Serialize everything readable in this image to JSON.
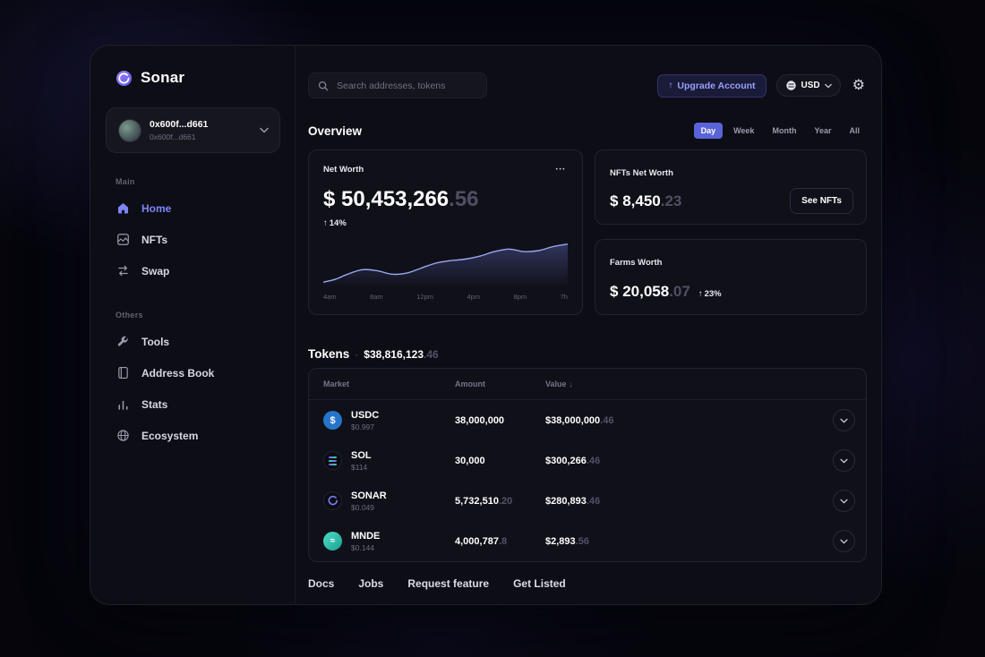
{
  "app": {
    "name": "Sonar"
  },
  "sidebar": {
    "wallet": {
      "name": "0x600f...d661",
      "address": "0x600f...d661"
    },
    "sections": [
      {
        "label": "Main",
        "items": [
          {
            "label": "Home"
          },
          {
            "label": "NFTs"
          },
          {
            "label": "Swap"
          }
        ]
      },
      {
        "label": "Others",
        "items": [
          {
            "label": "Tools"
          },
          {
            "label": "Address Book"
          },
          {
            "label": "Stats"
          },
          {
            "label": "Ecosystem"
          }
        ]
      }
    ]
  },
  "topbar": {
    "search_placeholder": "Search addresses, tokens",
    "upgrade_label": "Upgrade Account",
    "currency": "USD"
  },
  "overview": {
    "title": "Overview",
    "filters": [
      "Day",
      "Week",
      "Month",
      "Year",
      "All"
    ],
    "active_filter": "Day",
    "net_worth": {
      "label": "Net Worth",
      "currency": "$",
      "amount_int": "50,453,266",
      "amount_dec": ".56",
      "change": "14%"
    },
    "nfts": {
      "label": "NFTs Net Worth",
      "currency": "$",
      "amount_int": "8,450",
      "amount_dec": ".23",
      "button_label": "See NFTs"
    },
    "farms": {
      "label": "Farms Worth",
      "currency": "$",
      "amount_int": "20,058",
      "amount_dec": ".07",
      "change": "23%"
    }
  },
  "chart_data": {
    "type": "area",
    "title": "Net Worth (Day)",
    "x_labels": [
      "4am",
      "8am",
      "12pm",
      "4pm",
      "8pm",
      "7h"
    ],
    "points": [
      [
        0,
        0.88
      ],
      [
        0.05,
        0.82
      ],
      [
        0.1,
        0.72
      ],
      [
        0.16,
        0.63
      ],
      [
        0.22,
        0.65
      ],
      [
        0.28,
        0.72
      ],
      [
        0.34,
        0.7
      ],
      [
        0.4,
        0.6
      ],
      [
        0.46,
        0.5
      ],
      [
        0.52,
        0.45
      ],
      [
        0.58,
        0.42
      ],
      [
        0.64,
        0.36
      ],
      [
        0.7,
        0.27
      ],
      [
        0.76,
        0.22
      ],
      [
        0.82,
        0.27
      ],
      [
        0.88,
        0.25
      ],
      [
        0.94,
        0.17
      ],
      [
        1,
        0.12
      ]
    ],
    "line_color": "#9aa7f0",
    "fill_color": "rgba(125,140,245,0.28)",
    "grid": false,
    "legend": false
  },
  "tokens": {
    "title": "Tokens",
    "bullet": "·",
    "total_int": "$38,816,123",
    "total_dec": ".46",
    "columns": {
      "market": "Market",
      "amount": "Amount",
      "value": "Value"
    },
    "sort_arrow": "↓",
    "rows": [
      {
        "symbol": "USDC",
        "price": "$0.997",
        "amount_int": "38,000,000",
        "amount_dec": "",
        "value_int": "$38,000,000",
        "value_dec": ".46"
      },
      {
        "symbol": "SOL",
        "price": "$114",
        "amount_int": "30,000",
        "amount_dec": "",
        "value_int": "$300,266",
        "value_dec": ".46"
      },
      {
        "symbol": "SONAR",
        "price": "$0.049",
        "amount_int": "5,732,510",
        "amount_dec": ".20",
        "value_int": "$280,893",
        "value_dec": ".46"
      },
      {
        "symbol": "MNDE",
        "price": "$0.144",
        "amount_int": "4,000,787",
        "amount_dec": ".8",
        "value_int": "$2,893",
        "value_dec": ".56"
      }
    ]
  },
  "footer": {
    "links": [
      "Docs",
      "Jobs",
      "Request feature",
      "Get Listed"
    ]
  },
  "icons": {
    "up_arrow": "↑",
    "ellipsis": "•••",
    "gear": "⚙",
    "usdc_glyph": "$",
    "mnde_glyph": "≈"
  },
  "colors": {
    "accent": "#7d86f8",
    "active_pill": "#5a63d8",
    "usdc": "#2775ca"
  }
}
